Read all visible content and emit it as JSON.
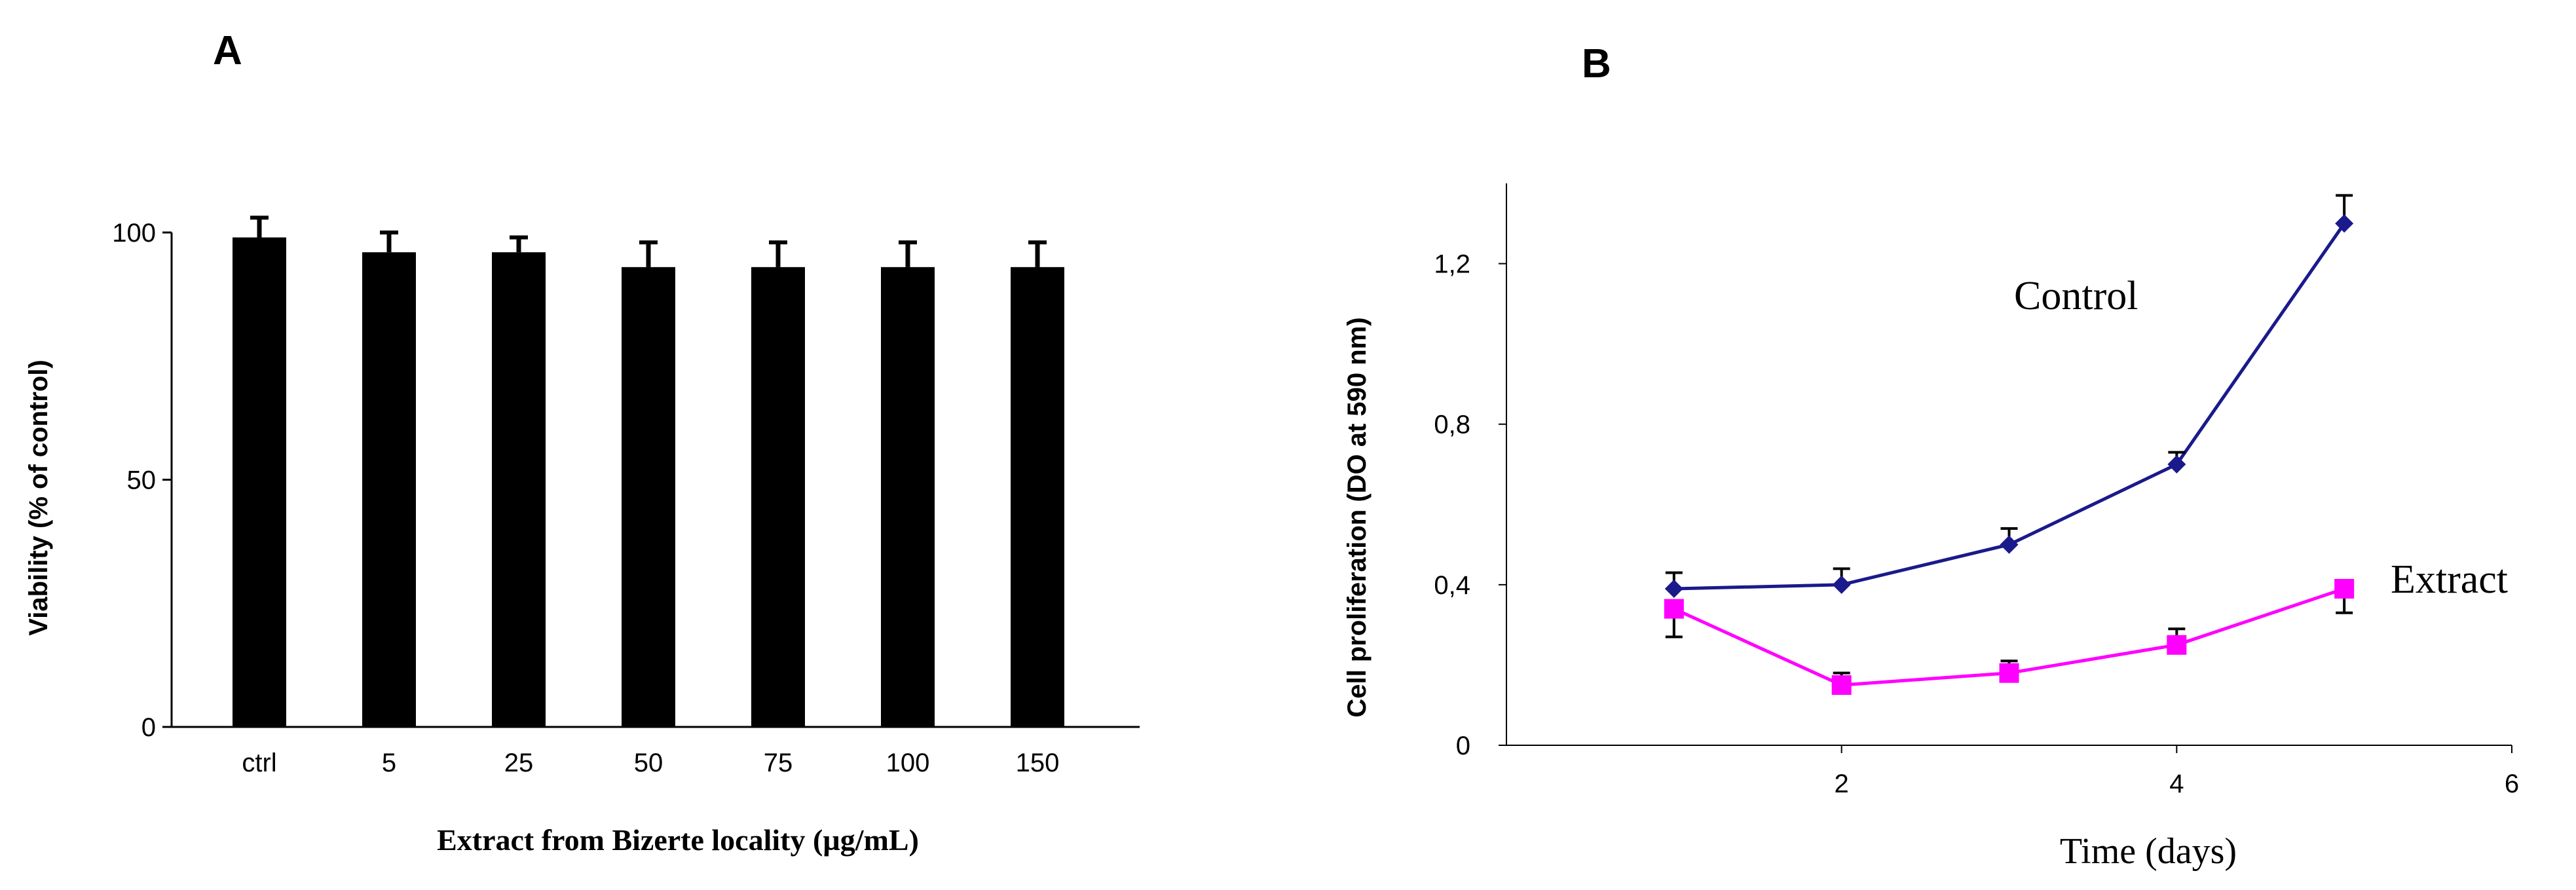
{
  "chart_data": [
    {
      "panel": "A",
      "type": "bar",
      "categories": [
        "ctrl",
        "5",
        "25",
        "50",
        "75",
        "100",
        "150"
      ],
      "values": [
        99,
        96,
        96,
        93,
        93,
        93,
        93
      ],
      "errors": [
        4,
        4,
        3,
        5,
        5,
        5,
        5
      ],
      "xlabel": "Extract from Bizerte locality (µg/mL)",
      "ylabel": "Viability (% of control)",
      "ylim": [
        0,
        100
      ],
      "yticks": [
        0,
        50,
        100
      ],
      "ytick_labels": [
        "0",
        "50",
        "100"
      ],
      "bar_color": "#000000"
    },
    {
      "panel": "B",
      "type": "line",
      "xlabel": "Time (days)",
      "ylabel": "Cell proliferation (DO at 590 nm)",
      "xlim": [
        0,
        6
      ],
      "ylim": [
        0,
        1.4
      ],
      "xticks": [
        2,
        4,
        6
      ],
      "xtick_labels": [
        "2",
        "4",
        "6"
      ],
      "yticks": [
        0,
        0.4,
        0.8,
        1.2
      ],
      "ytick_labels": [
        "0",
        "0,4",
        "0,8",
        "1,2"
      ],
      "series": [
        {
          "name": "Control",
          "color": "#1a1a8c",
          "marker": "diamond",
          "x": [
            1,
            2,
            3,
            4,
            5
          ],
          "y": [
            0.39,
            0.4,
            0.5,
            0.7,
            1.3
          ],
          "errors": [
            0.04,
            0.04,
            0.04,
            0.03,
            0.07
          ]
        },
        {
          "name": "Extract",
          "color": "#ff00ff",
          "marker": "square",
          "x": [
            1,
            2,
            3,
            4,
            5
          ],
          "y": [
            0.34,
            0.15,
            0.18,
            0.25,
            0.39
          ],
          "errors": [
            0.07,
            0.03,
            0.03,
            0.04,
            0.06
          ]
        }
      ]
    }
  ]
}
